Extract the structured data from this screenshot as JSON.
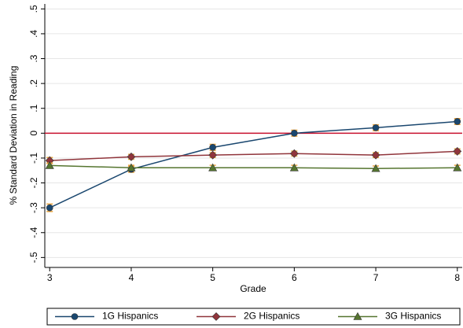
{
  "chart_data": {
    "type": "line",
    "x_label": "Grade",
    "y_label": "% Standard Deviation in Reading",
    "x": [
      3,
      4,
      5,
      6,
      7,
      8
    ],
    "xlim": [
      2.94,
      8.06
    ],
    "xticks": [
      3,
      4,
      5,
      6,
      7,
      8
    ],
    "ylim": [
      -0.54,
      0.52
    ],
    "yticks": [
      {
        "value": 0.5,
        "label": ".5"
      },
      {
        "value": 0.4,
        "label": ".4"
      },
      {
        "value": 0.3,
        "label": ".3"
      },
      {
        "value": 0.2,
        "label": ".2"
      },
      {
        "value": 0.1,
        "label": ".1"
      },
      0,
      {
        "value": -0.1,
        "label": "-.1"
      },
      {
        "value": -0.2,
        "label": "-.2"
      },
      {
        "value": -0.3,
        "label": "-.3"
      },
      {
        "value": -0.4,
        "label": "-.4"
      },
      {
        "value": -0.5,
        "label": "-.5"
      }
    ],
    "grid": true,
    "hline": 0,
    "hline_color": "#c8102e",
    "error_color": "#e8a33d",
    "legend": "bottom",
    "series": [
      {
        "name": "1G Hispanics",
        "color": "#1a476f",
        "marker": "circle",
        "values": [
          -0.3,
          -0.145,
          -0.057,
          0,
          0.022,
          0.047
        ],
        "errors": [
          0.015,
          0.012,
          0.012,
          0.012,
          0.012,
          0.012
        ]
      },
      {
        "name": "2G Hispanics",
        "color": "#90353b",
        "marker": "diamond",
        "values": [
          -0.11,
          -0.095,
          -0.088,
          -0.082,
          -0.088,
          -0.073
        ],
        "errors": [
          0.012,
          0.01,
          0.01,
          0.01,
          0.01,
          0.01
        ]
      },
      {
        "name": "3G Hispanics",
        "color": "#55752f",
        "marker": "triangle",
        "values": [
          -0.13,
          -0.139,
          -0.139,
          -0.139,
          -0.142,
          -0.139
        ],
        "errors": [
          0.01,
          0.01,
          0.01,
          0.01,
          0.01,
          0.01
        ]
      }
    ]
  }
}
